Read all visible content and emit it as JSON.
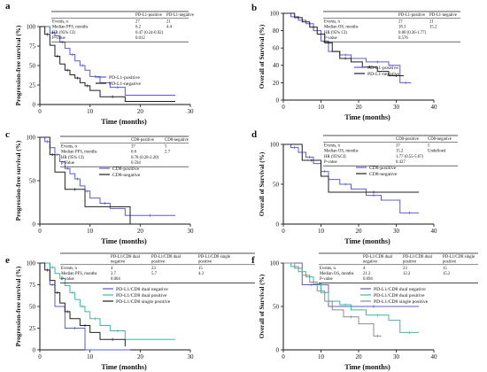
{
  "panels_meta": {
    "colors": {
      "blue": "#5b5bd6",
      "black": "#1f1f1f",
      "cyan": "#3fb6a5",
      "grey": "#8c8c8c"
    }
  },
  "chart_data": [
    {
      "id": "a",
      "type": "line",
      "step": true,
      "panel_label": "a",
      "xlabel": "Time (months)",
      "ylabel": "Progression-free survival (%)",
      "xlim": [
        0,
        30
      ],
      "ylim": [
        0,
        100
      ],
      "xticks": [
        "0",
        "10",
        "20",
        "30"
      ],
      "yticks": [
        "0",
        "25",
        "50",
        "75",
        "100"
      ],
      "grid": false,
      "legend_position": "bottom-right",
      "series": [
        {
          "name": "PD-L1-positive",
          "color": "#5b5bd6",
          "x": [
            0,
            2,
            3,
            4,
            5,
            6,
            7,
            8,
            9,
            10,
            12,
            14,
            17,
            27
          ],
          "y": [
            100,
            92,
            88,
            80,
            72,
            64,
            56,
            50,
            44,
            36,
            28,
            22,
            12,
            12
          ]
        },
        {
          "name": "PD-L1-negative",
          "color": "#1f1f1f",
          "x": [
            0,
            1,
            2,
            3,
            4,
            5,
            6,
            7,
            8,
            9,
            10,
            12,
            17,
            27
          ],
          "y": [
            100,
            90,
            76,
            62,
            52,
            44,
            38,
            34,
            28,
            24,
            18,
            10,
            4,
            4
          ]
        }
      ],
      "table": {
        "header": [
          "",
          "PD-L1-positive",
          "PD-L1-negative"
        ],
        "rows": [
          [
            "Events, n",
            "27",
            "21"
          ],
          [
            "Median PFS, months",
            "6.2",
            "4.4"
          ],
          [
            "HR (95% CI)",
            "0.47 (0.24-0.92)",
            ""
          ],
          [
            "P-value",
            "0.012",
            ""
          ]
        ]
      }
    },
    {
      "id": "b",
      "type": "line",
      "step": true,
      "panel_label": "b",
      "xlabel": "Time (months)",
      "ylabel": "Overall of Survival (%)",
      "xlim": [
        0,
        40
      ],
      "ylim": [
        0,
        100
      ],
      "xticks": [
        "0",
        "10",
        "20",
        "30",
        "40"
      ],
      "yticks": [
        "0",
        "20",
        "40",
        "60",
        "80",
        "100"
      ],
      "grid": false,
      "legend_position": "bottom-right",
      "series": [
        {
          "name": "PD-L1-positive",
          "color": "#5b5bd6",
          "x": [
            0,
            2,
            4,
            6,
            8,
            10,
            12,
            15,
            18,
            22,
            28,
            31,
            34
          ],
          "y": [
            100,
            96,
            92,
            88,
            80,
            68,
            56,
            52,
            48,
            44,
            40,
            20,
            20
          ]
        },
        {
          "name": "PD-L1-negative",
          "color": "#1f1f1f",
          "x": [
            0,
            3,
            5,
            7,
            9,
            11,
            13,
            15,
            18,
            21,
            25,
            28,
            32
          ],
          "y": [
            100,
            95,
            90,
            84,
            76,
            66,
            56,
            48,
            44,
            38,
            33,
            28,
            28
          ]
        }
      ],
      "table": {
        "header": [
          "",
          "PD-L1-positive",
          "PD-L1-negative"
        ],
        "rows": [
          [
            "Events, n",
            "27",
            "21"
          ],
          [
            "Median OS, months",
            "18.3",
            "15.2"
          ],
          [
            "HR (95% CI)",
            "0.80 (0.36-1.77)",
            ""
          ],
          [
            "P-value",
            "0.576",
            ""
          ]
        ]
      }
    },
    {
      "id": "c",
      "type": "line",
      "step": true,
      "panel_label": "c",
      "xlabel": "Time (months)",
      "ylabel": "Progression-free survival (%)",
      "xlim": [
        0,
        30
      ],
      "ylim": [
        0,
        100
      ],
      "xticks": [
        "0",
        "10",
        "20",
        "30"
      ],
      "yticks": [
        "0",
        "50",
        "100"
      ],
      "grid": false,
      "legend_position": "right",
      "series": [
        {
          "name": "CD8-positive",
          "color": "#5b5bd6",
          "x": [
            0,
            1,
            2,
            3,
            4,
            5,
            6,
            7,
            8,
            9,
            10,
            12,
            14,
            17,
            27
          ],
          "y": [
            100,
            95,
            88,
            80,
            72,
            64,
            58,
            52,
            44,
            38,
            30,
            24,
            18,
            10,
            10
          ]
        },
        {
          "name": "CD8-negative",
          "color": "#1f1f1f",
          "x": [
            0,
            2,
            3,
            5,
            9,
            18
          ],
          "y": [
            100,
            80,
            60,
            40,
            20,
            0
          ]
        }
      ],
      "table": {
        "header": [
          "",
          "CD8-positive",
          "CD8-negative"
        ],
        "rows": [
          [
            "Events, n",
            "37",
            "5"
          ],
          [
            "Median PFS, months",
            "6.6",
            "2.7"
          ],
          [
            "HR (95% CI)",
            "0.78 (0.28-2.20)",
            ""
          ],
          [
            "p-Value",
            "0.594",
            ""
          ]
        ]
      }
    },
    {
      "id": "d",
      "type": "line",
      "step": true,
      "panel_label": "d",
      "xlabel": "Time (months)",
      "ylabel": "Overall of Survival (%)",
      "xlim": [
        0,
        40
      ],
      "ylim": [
        0,
        100
      ],
      "xticks": [
        "0",
        "10",
        "20",
        "30",
        "40"
      ],
      "yticks": [
        "0",
        "50",
        "100"
      ],
      "grid": false,
      "legend_position": "right",
      "series": [
        {
          "name": "CD8-positive",
          "color": "#5b5bd6",
          "x": [
            0,
            2,
            4,
            6,
            8,
            10,
            12,
            15,
            18,
            22,
            26,
            31,
            36
          ],
          "y": [
            100,
            96,
            90,
            84,
            76,
            66,
            56,
            50,
            44,
            36,
            30,
            14,
            14
          ]
        },
        {
          "name": "CD8-negative",
          "color": "#1f1f1f",
          "x": [
            0,
            5,
            10,
            12,
            36
          ],
          "y": [
            100,
            80,
            60,
            40,
            40
          ]
        }
      ],
      "table": {
        "header": [
          "",
          "CD8-positive",
          "CD8-negative"
        ],
        "rows": [
          [
            "Events, n",
            "37",
            "5"
          ],
          [
            "Median OS, months",
            "15.2",
            "Undefined"
          ],
          [
            "HR (95%CI)",
            "1.77 (0.55-5.67)",
            ""
          ],
          [
            "P-value",
            "0.427",
            ""
          ]
        ]
      }
    },
    {
      "id": "e",
      "type": "line",
      "step": true,
      "panel_label": "e",
      "xlabel": "Time (months)",
      "ylabel": "Progression-free survival (%)",
      "xlim": [
        0,
        30
      ],
      "ylim": [
        0,
        100
      ],
      "xticks": [
        "0",
        "10",
        "20",
        "30"
      ],
      "yticks": [
        "0",
        "25",
        "50",
        "75",
        "100"
      ],
      "grid": false,
      "legend_position": "right",
      "series": [
        {
          "name": "PD-L1/CD8 dual negative",
          "color": "#5b5bd6",
          "x": [
            0,
            2,
            3,
            5,
            9,
            18
          ],
          "y": [
            100,
            75,
            50,
            25,
            0,
            0
          ]
        },
        {
          "name": "PD-L1/CD8 dual positive",
          "color": "#3fb6a5",
          "x": [
            0,
            2,
            3,
            4,
            5,
            6,
            7,
            8,
            9,
            10,
            12,
            14,
            17,
            27
          ],
          "y": [
            100,
            95,
            88,
            82,
            74,
            66,
            58,
            50,
            44,
            36,
            28,
            22,
            12,
            12
          ]
        },
        {
          "name": "PD-L1/CD8 single positive",
          "color": "#1f1f1f",
          "x": [
            0,
            1,
            2,
            3,
            4,
            5,
            6,
            8,
            10,
            12,
            17
          ],
          "y": [
            100,
            92,
            80,
            66,
            54,
            44,
            36,
            28,
            20,
            12,
            4
          ]
        }
      ],
      "table": {
        "header": [
          "",
          "PD-L1/CD8 dual negative",
          "PD-L1/CD8 dual positive",
          "PD-L1/CD8 single positive"
        ],
        "rows": [
          [
            "Events, n",
            "4",
            "23",
            "15"
          ],
          [
            "Median PFS, months",
            "2.7",
            "5.7",
            "4.3"
          ],
          [
            "P-value",
            "0.004",
            "",
            ""
          ]
        ]
      }
    },
    {
      "id": "f",
      "type": "line",
      "step": true,
      "panel_label": "f",
      "xlabel": "Time (months)",
      "ylabel": "Overall of Survival (%)",
      "xlim": [
        0,
        40
      ],
      "ylim": [
        0,
        100
      ],
      "xticks": [
        "0",
        "10",
        "20",
        "30",
        "40"
      ],
      "yticks": [
        "0",
        "50",
        "100"
      ],
      "grid": false,
      "legend_position": "right",
      "series": [
        {
          "name": "PD-L1/CD8 dual negative",
          "color": "#5b5bd6",
          "x": [
            0,
            5,
            10,
            12,
            36
          ],
          "y": [
            100,
            75,
            75,
            50,
            50
          ]
        },
        {
          "name": "PD-L1/CD8 dual positive",
          "color": "#3fb6a5",
          "x": [
            0,
            2,
            4,
            6,
            8,
            10,
            12,
            15,
            18,
            22,
            28,
            31,
            36
          ],
          "y": [
            100,
            96,
            90,
            84,
            76,
            66,
            56,
            52,
            46,
            40,
            34,
            20,
            20
          ]
        },
        {
          "name": "PD-L1/CD8 single positive",
          "color": "#8c8c8c",
          "x": [
            0,
            3,
            5,
            7,
            9,
            11,
            13,
            16,
            20,
            24,
            26
          ],
          "y": [
            100,
            94,
            86,
            78,
            68,
            56,
            46,
            38,
            30,
            16,
            16
          ]
        }
      ],
      "table": {
        "header": [
          "",
          "PD-L1/CD8 dual negative",
          "PD-L1/CD8 dual positive",
          "PD-L1/CD8 single positive"
        ],
        "rows": [
          [
            "Events, n",
            "4",
            "23",
            "15"
          ],
          [
            "Median OS, months",
            "21.2",
            "12.2",
            "15.2"
          ],
          [
            "P-value",
            "0.694",
            "",
            ""
          ]
        ]
      }
    }
  ]
}
